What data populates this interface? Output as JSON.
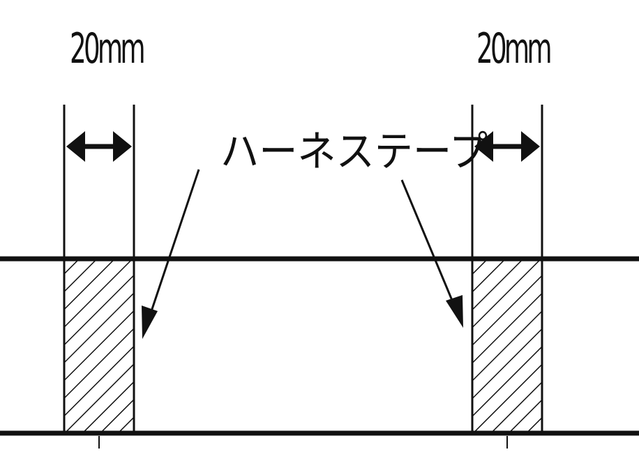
{
  "dimension_left": {
    "label": "20mm"
  },
  "dimension_right": {
    "label": "20mm"
  },
  "callout": {
    "label": "ハーネステープ"
  },
  "colors": {
    "line": "#111111",
    "background": "#ffffff"
  }
}
